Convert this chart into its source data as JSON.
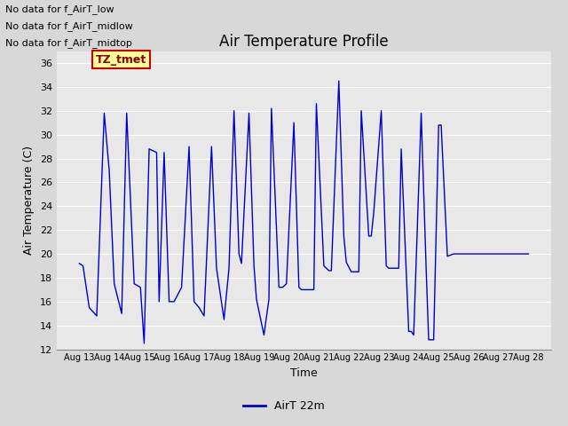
{
  "title": "Air Temperature Profile",
  "xlabel": "Time",
  "ylabel": "Air Temperature (C)",
  "legend_label": "AirT 22m",
  "line_color": "#0000cc",
  "background_color": "#d8d8d8",
  "plot_bg_color": "#e8e8e8",
  "ylim": [
    12,
    37
  ],
  "yticks": [
    12,
    14,
    16,
    18,
    20,
    22,
    24,
    26,
    28,
    30,
    32,
    34,
    36
  ],
  "annotations_top_left": [
    "No data for f_AirT_low",
    "No data for f_AirT_midlow",
    "No data for f_AirT_midtop"
  ],
  "tz_label": "TZ_tmet",
  "title_fontsize": 12,
  "axis_label_fontsize": 9,
  "tick_fontsize": 8,
  "legend_fontsize": 9,
  "keypoints_hours": [
    0,
    3,
    8,
    14,
    20,
    24,
    28,
    34,
    38,
    44,
    49,
    52,
    56,
    62,
    64,
    68,
    72,
    76,
    82,
    88,
    92,
    96,
    100,
    106,
    110,
    116,
    120,
    124,
    128,
    130,
    136,
    140,
    142,
    148,
    152,
    154,
    160,
    163,
    166,
    172,
    176,
    178,
    184,
    188,
    190,
    196,
    200,
    202,
    208,
    212,
    214,
    218,
    224,
    226,
    232,
    234,
    236,
    242,
    246,
    248,
    252,
    256,
    258,
    264,
    266,
    268,
    274,
    278,
    280,
    284,
    288,
    290,
    295,
    300,
    360
  ],
  "keypoints_temps": [
    19.2,
    19.0,
    15.5,
    14.8,
    31.8,
    27.0,
    17.5,
    15.0,
    31.8,
    17.5,
    17.2,
    12.5,
    28.8,
    28.5,
    16.0,
    28.5,
    16.0,
    16.0,
    17.2,
    29.0,
    16.0,
    15.5,
    14.8,
    29.0,
    18.8,
    14.5,
    18.8,
    32.0,
    20.0,
    19.2,
    31.8,
    19.0,
    16.2,
    13.2,
    16.2,
    32.2,
    17.2,
    17.2,
    17.5,
    31.0,
    17.2,
    17.0,
    17.0,
    17.0,
    32.6,
    19.0,
    18.6,
    18.6,
    34.5,
    21.5,
    19.3,
    18.5,
    18.5,
    32.0,
    21.5,
    21.5,
    23.5,
    32.0,
    19.0,
    18.8,
    18.8,
    18.8,
    28.8,
    13.5,
    13.5,
    13.2,
    31.8,
    18.7,
    12.8,
    12.8,
    30.8,
    30.8,
    19.8,
    20.0,
    20.0
  ]
}
